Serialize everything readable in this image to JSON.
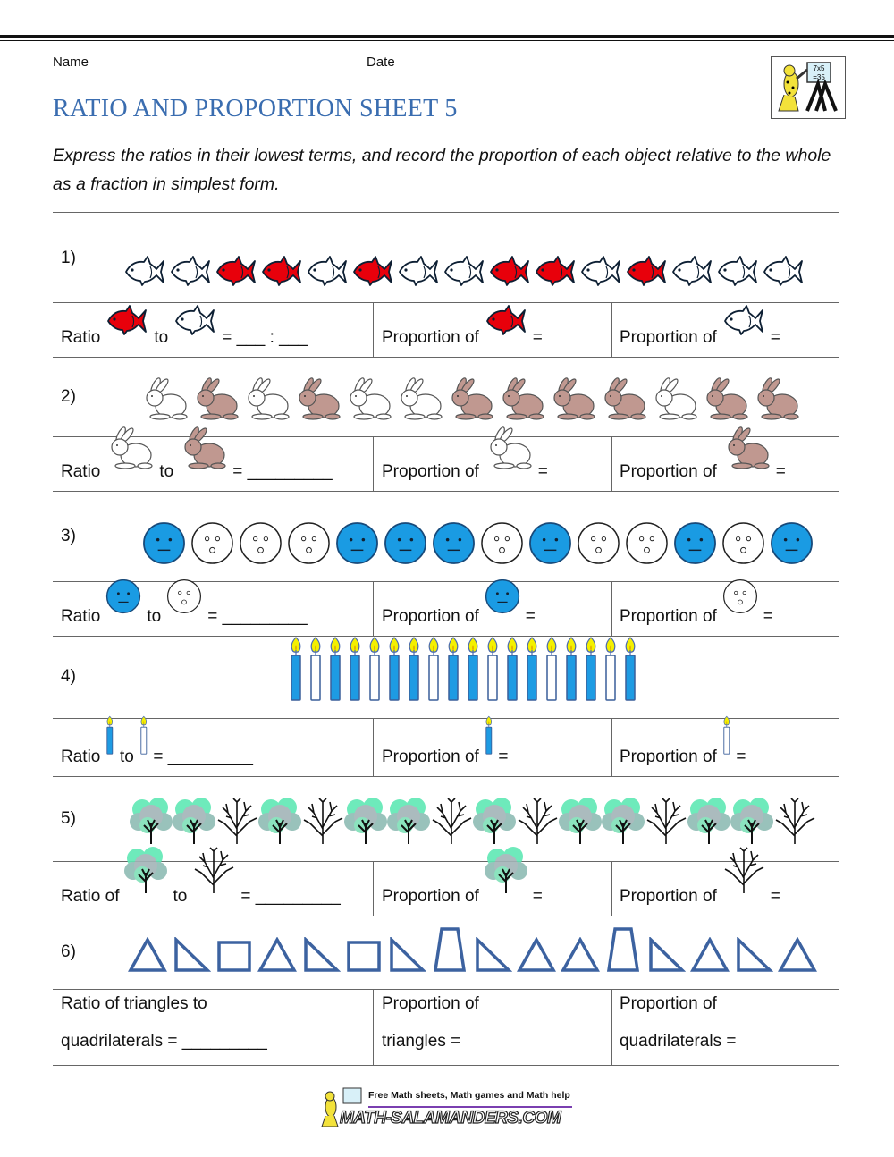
{
  "header": {
    "name_label": "Name",
    "date_label": "Date",
    "title": "RATIO AND PROPORTION SHEET 5",
    "instructions": "Express the ratios in their lowest terms, and record the proportion of each object relative to the whole as a fraction in simplest form.",
    "logo_board_text": "7x5 =35"
  },
  "colors": {
    "title": "#3a6db0",
    "red_fish": "#e8000b",
    "brown_rabbit": "#c09890",
    "blue_face": "#1a9be3",
    "blue_candle": "#1e9be3",
    "shape_outline": "#3c62a0",
    "tree_green": "#5fe8b4"
  },
  "questions": [
    {
      "number": "1)",
      "items": [
        "white-fish",
        "white-fish",
        "red-fish",
        "red-fish",
        "white-fish",
        "red-fish",
        "white-fish",
        "white-fish",
        "red-fish",
        "red-fish",
        "white-fish",
        "red-fish",
        "white-fish",
        "white-fish",
        "white-fish"
      ],
      "ratio_label": "Ratio",
      "to_label": "to",
      "ratio_blank": "= ___ : ___",
      "ratio_icons": [
        "red-fish",
        "white-fish"
      ],
      "proportion_label": "Proportion of",
      "equals": "=",
      "proportion_icons": [
        "red-fish",
        "white-fish"
      ]
    },
    {
      "number": "2)",
      "items": [
        "white-rabbit",
        "brown-rabbit",
        "white-rabbit",
        "brown-rabbit",
        "white-rabbit",
        "white-rabbit",
        "brown-rabbit",
        "brown-rabbit",
        "brown-rabbit",
        "brown-rabbit",
        "white-rabbit",
        "brown-rabbit",
        "brown-rabbit"
      ],
      "ratio_label": "Ratio",
      "to_label": "to",
      "ratio_blank": "= _________",
      "ratio_icons": [
        "white-rabbit",
        "brown-rabbit"
      ],
      "proportion_label": "Proportion of",
      "equals": "=",
      "proportion_icons": [
        "white-rabbit",
        "brown-rabbit"
      ]
    },
    {
      "number": "3)",
      "items": [
        "blue-face",
        "white-face",
        "white-face",
        "white-face",
        "blue-face",
        "blue-face",
        "blue-face",
        "white-face",
        "blue-face",
        "white-face",
        "white-face",
        "blue-face",
        "white-face",
        "blue-face"
      ],
      "ratio_label": "Ratio",
      "to_label": "to",
      "ratio_blank": "= _________",
      "ratio_icons": [
        "blue-face",
        "white-face"
      ],
      "proportion_label": "Proportion of",
      "equals": "=",
      "proportion_icons": [
        "blue-face",
        "white-face"
      ]
    },
    {
      "number": "4)",
      "items": [
        "blue-candle",
        "white-candle",
        "blue-candle",
        "blue-candle",
        "white-candle",
        "blue-candle",
        "blue-candle",
        "white-candle",
        "blue-candle",
        "blue-candle",
        "white-candle",
        "blue-candle",
        "blue-candle",
        "white-candle",
        "blue-candle",
        "blue-candle",
        "white-candle",
        "blue-candle"
      ],
      "ratio_label": "Ratio",
      "to_label": "to",
      "ratio_blank": "= _________",
      "ratio_icons": [
        "blue-candle",
        "white-candle"
      ],
      "proportion_label": "Proportion of",
      "equals": "=",
      "proportion_icons": [
        "blue-candle",
        "white-candle"
      ]
    },
    {
      "number": "5)",
      "items": [
        "green-tree",
        "green-tree",
        "bare-tree",
        "green-tree",
        "bare-tree",
        "green-tree",
        "green-tree",
        "bare-tree",
        "green-tree",
        "bare-tree",
        "green-tree",
        "green-tree",
        "bare-tree",
        "green-tree",
        "green-tree",
        "bare-tree"
      ],
      "ratio_label": "Ratio of",
      "to_label": "to",
      "ratio_blank": "= _________",
      "ratio_icons": [
        "green-tree",
        "bare-tree"
      ],
      "proportion_label": "Proportion of",
      "equals": "=",
      "proportion_icons": [
        "green-tree",
        "bare-tree"
      ]
    },
    {
      "number": "6)",
      "items": [
        "triangle",
        "right-triangle",
        "square",
        "triangle",
        "right-triangle",
        "square",
        "right-triangle",
        "trapezoid",
        "right-triangle",
        "triangle",
        "triangle",
        "trapezoid",
        "right-triangle",
        "triangle",
        "right-triangle",
        "triangle"
      ],
      "ratio_line1": "Ratio of triangles to",
      "ratio_line2": "quadrilaterals = _________",
      "proportion1_line1": "Proportion of",
      "proportion1_line2": "triangles =",
      "proportion2_line1": "Proportion of",
      "proportion2_line2": "quadrilaterals ="
    }
  ],
  "footer": {
    "tagline": "Free Math sheets, Math games and Math help",
    "site": "MATH-SALAMANDERS.COM"
  }
}
